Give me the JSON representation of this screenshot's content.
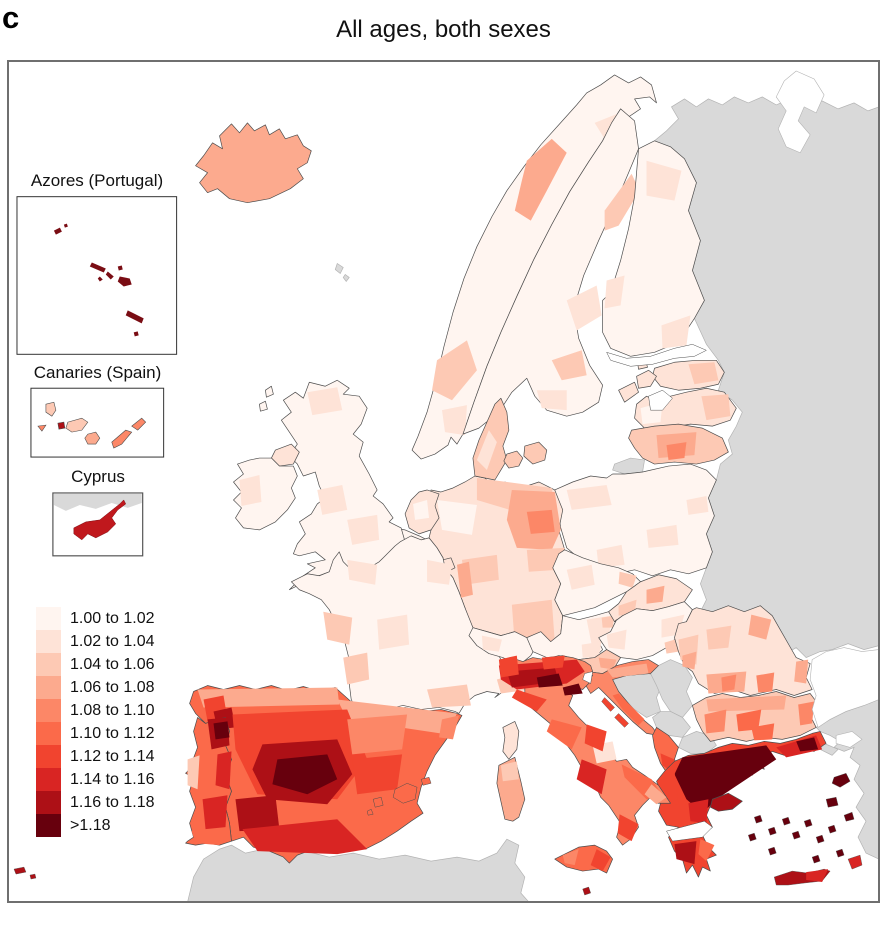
{
  "panel_label": "c",
  "title": "All ages, both sexes",
  "insets": {
    "azores_label": "Azores (Portugal)",
    "canaries_label": "Canaries (Spain)",
    "cyprus_label": "Cyprus"
  },
  "legend": {
    "bins": [
      {
        "label": "1.00 to 1.02",
        "color": "#fff5f0"
      },
      {
        "label": "1.02 to 1.04",
        "color": "#fee3d7"
      },
      {
        "label": "1.04 to 1.06",
        "color": "#fdc9b4"
      },
      {
        "label": "1.06 to 1.08",
        "color": "#fcaa8e"
      },
      {
        "label": "1.08 to 1.10",
        "color": "#fc8767"
      },
      {
        "label": "1.10 to 1.12",
        "color": "#fb6a4a"
      },
      {
        "label": "1.12 to 1.14",
        "color": "#f1442f"
      },
      {
        "label": "1.14 to 1.16",
        "color": "#d92523"
      },
      {
        "label": "1.16 to 1.18",
        "color": "#ad1016"
      },
      {
        "label": ">1.18",
        "color": "#67000d"
      }
    ]
  },
  "map": {
    "region": "Europe choropleth",
    "sea_color": "#ffffff",
    "no_data_color": "#d9d9d9",
    "border_color": "#4d4d4d"
  }
}
